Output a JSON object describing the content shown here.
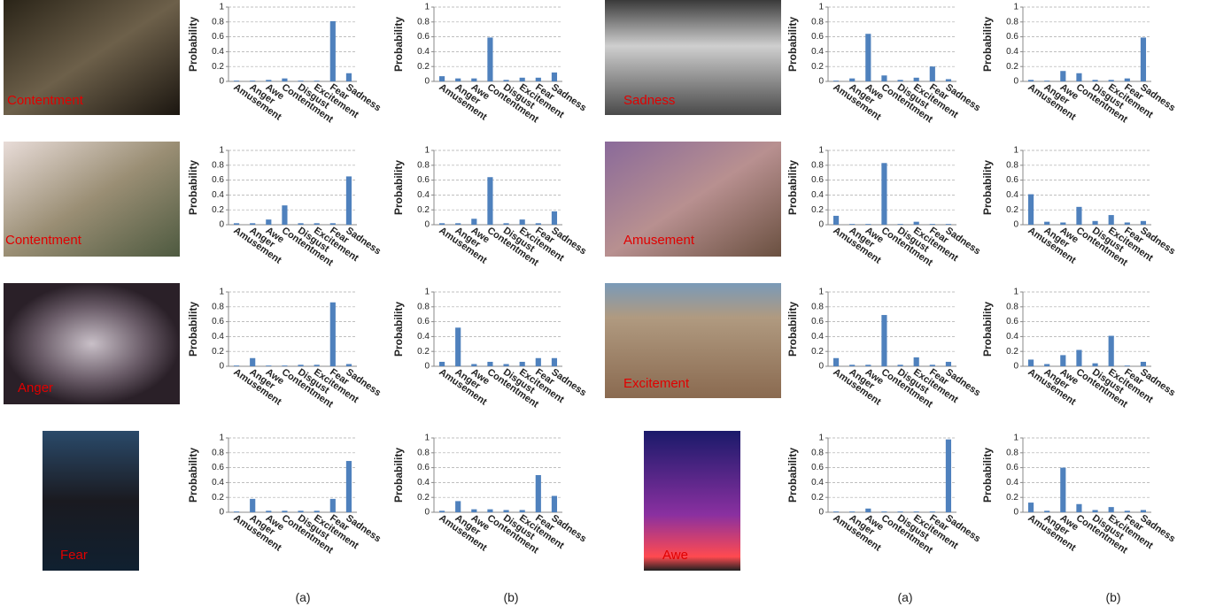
{
  "images": [
    "Contentment",
    "Contentment",
    "Anger",
    "Fear",
    "Sadness",
    "Amusement",
    "Excitement",
    "Awe"
  ],
  "captions": [
    "(a)",
    "(b)",
    "(a)",
    "(b)"
  ],
  "chart_data": [
    {
      "type": "bar",
      "ylabel": "Probability",
      "categories": [
        "Amusement",
        "Anger",
        "Awe",
        "Contentment",
        "Disgust",
        "Excitement",
        "Fear",
        "Sadness"
      ],
      "values": [
        0.01,
        0.01,
        0.02,
        0.04,
        0.01,
        0.01,
        0.81,
        0.11
      ],
      "color": "#4f81bd",
      "ylim": [
        0,
        1
      ],
      "yticks": [
        0,
        0.2,
        0.4,
        0.6,
        0.8,
        1
      ],
      "grid": true
    },
    {
      "type": "bar",
      "ylabel": "Probability",
      "categories": [
        "Amusement",
        "Anger",
        "Awe",
        "Contentment",
        "Disgust",
        "Excitement",
        "Fear",
        "Sadness"
      ],
      "values": [
        0.07,
        0.04,
        0.04,
        0.59,
        0.02,
        0.05,
        0.05,
        0.12
      ],
      "color": "#4f81bd",
      "ylim": [
        0,
        1
      ],
      "yticks": [
        0,
        0.2,
        0.4,
        0.6,
        0.8,
        1
      ],
      "grid": true
    },
    {
      "type": "bar",
      "ylabel": "Probability",
      "categories": [
        "Amusement",
        "Anger",
        "Awe",
        "Contentment",
        "Disgust",
        "Excitement",
        "Fear",
        "Sadness"
      ],
      "values": [
        0.02,
        0.02,
        0.07,
        0.26,
        0.02,
        0.02,
        0.02,
        0.65
      ],
      "color": "#4f81bd",
      "ylim": [
        0,
        1
      ],
      "yticks": [
        0,
        0.2,
        0.4,
        0.6,
        0.8,
        1
      ],
      "grid": true
    },
    {
      "type": "bar",
      "ylabel": "Probability",
      "categories": [
        "Amusement",
        "Anger",
        "Awe",
        "Contentment",
        "Disgust",
        "Excitement",
        "Fear",
        "Sadness"
      ],
      "values": [
        0.02,
        0.02,
        0.08,
        0.64,
        0.02,
        0.07,
        0.02,
        0.18
      ],
      "color": "#4f81bd",
      "ylim": [
        0,
        1
      ],
      "yticks": [
        0,
        0.2,
        0.4,
        0.6,
        0.8,
        1
      ],
      "grid": true
    },
    {
      "type": "bar",
      "ylabel": "Probability",
      "categories": [
        "Amusement",
        "Anger",
        "Awe",
        "Contentment",
        "Disgust",
        "Excitement",
        "Fear",
        "Sadness"
      ],
      "values": [
        0.01,
        0.11,
        0.01,
        0.01,
        0.02,
        0.02,
        0.86,
        0.03
      ],
      "color": "#4f81bd",
      "ylim": [
        0,
        1
      ],
      "yticks": [
        0,
        0.2,
        0.4,
        0.6,
        0.8,
        1
      ],
      "grid": true
    },
    {
      "type": "bar",
      "ylabel": "Probability",
      "categories": [
        "Amusement",
        "Anger",
        "Awe",
        "Contentment",
        "Disgust",
        "Excitement",
        "Fear",
        "Sadness"
      ],
      "values": [
        0.06,
        0.52,
        0.03,
        0.06,
        0.03,
        0.06,
        0.11,
        0.11
      ],
      "color": "#4f81bd",
      "ylim": [
        0,
        1
      ],
      "yticks": [
        0,
        0.2,
        0.4,
        0.6,
        0.8,
        1
      ],
      "grid": true
    },
    {
      "type": "bar",
      "ylabel": "Probability",
      "categories": [
        "Amusement",
        "Anger",
        "Awe",
        "Contentment",
        "Disgust",
        "Excitement",
        "Fear",
        "Sadness"
      ],
      "values": [
        0.01,
        0.18,
        0.02,
        0.02,
        0.02,
        0.02,
        0.18,
        0.69
      ],
      "color": "#4f81bd",
      "ylim": [
        0,
        1
      ],
      "yticks": [
        0,
        0.2,
        0.4,
        0.6,
        0.8,
        1
      ],
      "grid": true
    },
    {
      "type": "bar",
      "ylabel": "Probability",
      "categories": [
        "Amusement",
        "Anger",
        "Awe",
        "Contentment",
        "Disgust",
        "Excitement",
        "Fear",
        "Sadness"
      ],
      "values": [
        0.02,
        0.15,
        0.04,
        0.04,
        0.03,
        0.03,
        0.5,
        0.22
      ],
      "color": "#4f81bd",
      "ylim": [
        0,
        1
      ],
      "yticks": [
        0,
        0.2,
        0.4,
        0.6,
        0.8,
        1
      ],
      "grid": true
    },
    {
      "type": "bar",
      "ylabel": "Probability",
      "categories": [
        "Amusement",
        "Anger",
        "Awe",
        "Contentment",
        "Disgust",
        "Excitement",
        "Fear",
        "Sadness"
      ],
      "values": [
        0.01,
        0.04,
        0.64,
        0.08,
        0.02,
        0.05,
        0.2,
        0.03
      ],
      "color": "#4f81bd",
      "ylim": [
        0,
        1
      ],
      "yticks": [
        0,
        0.2,
        0.4,
        0.6,
        0.8,
        1
      ],
      "grid": true
    },
    {
      "type": "bar",
      "ylabel": "Probability",
      "categories": [
        "Amusement",
        "Anger",
        "Awe",
        "Contentment",
        "Disgust",
        "Excitement",
        "Fear",
        "Sadness"
      ],
      "values": [
        0.02,
        0.01,
        0.14,
        0.11,
        0.02,
        0.02,
        0.04,
        0.59
      ],
      "color": "#4f81bd",
      "ylim": [
        0,
        1
      ],
      "yticks": [
        0,
        0.2,
        0.4,
        0.6,
        0.8,
        1
      ],
      "grid": true
    },
    {
      "type": "bar",
      "ylabel": "Probability",
      "categories": [
        "Amusement",
        "Anger",
        "Awe",
        "Contentment",
        "Disgust",
        "Excitement",
        "Fear",
        "Sadness"
      ],
      "values": [
        0.12,
        0.01,
        0.01,
        0.83,
        0.01,
        0.04,
        0.01,
        0.01
      ],
      "color": "#4f81bd",
      "ylim": [
        0,
        1
      ],
      "yticks": [
        0,
        0.2,
        0.4,
        0.6,
        0.8,
        1
      ],
      "grid": true
    },
    {
      "type": "bar",
      "ylabel": "Probability",
      "categories": [
        "Amusement",
        "Anger",
        "Awe",
        "Contentment",
        "Disgust",
        "Excitement",
        "Fear",
        "Sadness"
      ],
      "values": [
        0.41,
        0.04,
        0.03,
        0.24,
        0.05,
        0.13,
        0.03,
        0.05
      ],
      "color": "#4f81bd",
      "ylim": [
        0,
        1
      ],
      "yticks": [
        0,
        0.2,
        0.4,
        0.6,
        0.8,
        1
      ],
      "grid": true
    },
    {
      "type": "bar",
      "ylabel": "Probability",
      "categories": [
        "Amusement",
        "Anger",
        "Awe",
        "Contentment",
        "Disgust",
        "Excitement",
        "Fear",
        "Sadness"
      ],
      "values": [
        0.11,
        0.02,
        0.02,
        0.69,
        0.02,
        0.12,
        0.02,
        0.06
      ],
      "color": "#4f81bd",
      "ylim": [
        0,
        1
      ],
      "yticks": [
        0,
        0.2,
        0.4,
        0.6,
        0.8,
        1
      ],
      "grid": true
    },
    {
      "type": "bar",
      "ylabel": "Probability",
      "categories": [
        "Amusement",
        "Anger",
        "Awe",
        "Contentment",
        "Disgust",
        "Excitement",
        "Fear",
        "Sadness"
      ],
      "values": [
        0.09,
        0.03,
        0.15,
        0.22,
        0.04,
        0.41,
        0.01,
        0.06
      ],
      "color": "#4f81bd",
      "ylim": [
        0,
        1
      ],
      "yticks": [
        0,
        0.2,
        0.4,
        0.6,
        0.8,
        1
      ],
      "grid": true
    },
    {
      "type": "bar",
      "ylabel": "Probability",
      "categories": [
        "Amusement",
        "Anger",
        "Awe",
        "Contentment",
        "Disgust",
        "Excitement",
        "Fear",
        "Sadness"
      ],
      "values": [
        0.01,
        0.01,
        0.05,
        0.01,
        0.01,
        0.01,
        0.01,
        0.98
      ],
      "color": "#4f81bd",
      "ylim": [
        0,
        1
      ],
      "yticks": [
        0,
        0.2,
        0.4,
        0.6,
        0.8,
        1
      ],
      "grid": true
    },
    {
      "type": "bar",
      "ylabel": "Probability",
      "categories": [
        "Amusement",
        "Anger",
        "Awe",
        "Contentment",
        "Disgust",
        "Excitement",
        "Fear",
        "Sadness"
      ],
      "values": [
        0.13,
        0.02,
        0.6,
        0.11,
        0.03,
        0.07,
        0.02,
        0.03
      ],
      "color": "#4f81bd",
      "ylim": [
        0,
        1
      ],
      "yticks": [
        0,
        0.2,
        0.4,
        0.6,
        0.8,
        1
      ],
      "grid": true
    }
  ]
}
